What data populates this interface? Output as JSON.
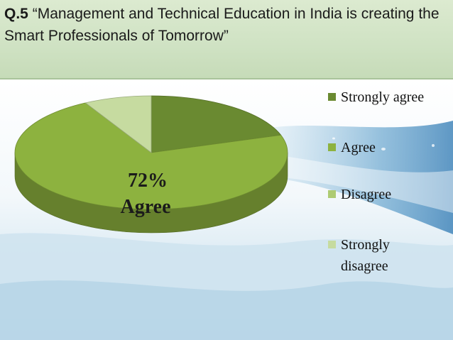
{
  "slide": {
    "question_number": "Q.5",
    "question_text": "“Management and Technical Education in India is creating the Smart Professionals   of  Tomorrow”",
    "colors": {
      "title_band": "#cfe2c3",
      "background_sky": "#eef6fb",
      "water_blue": "#6fa9cf"
    }
  },
  "chart_data": {
    "type": "pie",
    "title": "",
    "slices": [
      {
        "label": "Strongly agree",
        "value": 20,
        "color": "#6a8a31"
      },
      {
        "label": "Agree",
        "value": 72,
        "color": "#8db23f"
      },
      {
        "label": "Disagree",
        "value": 0,
        "color": "#aecb73"
      },
      {
        "label": "Strongly disagree",
        "value": 8,
        "color": "#c6dba0"
      }
    ],
    "data_label": {
      "lines": [
        "72%",
        "Agree"
      ]
    },
    "legend": {
      "position": "right",
      "items": [
        "Strongly agree",
        "Agree",
        "Disagree",
        "Strongly disagree"
      ]
    },
    "style": "3d-tilted"
  }
}
